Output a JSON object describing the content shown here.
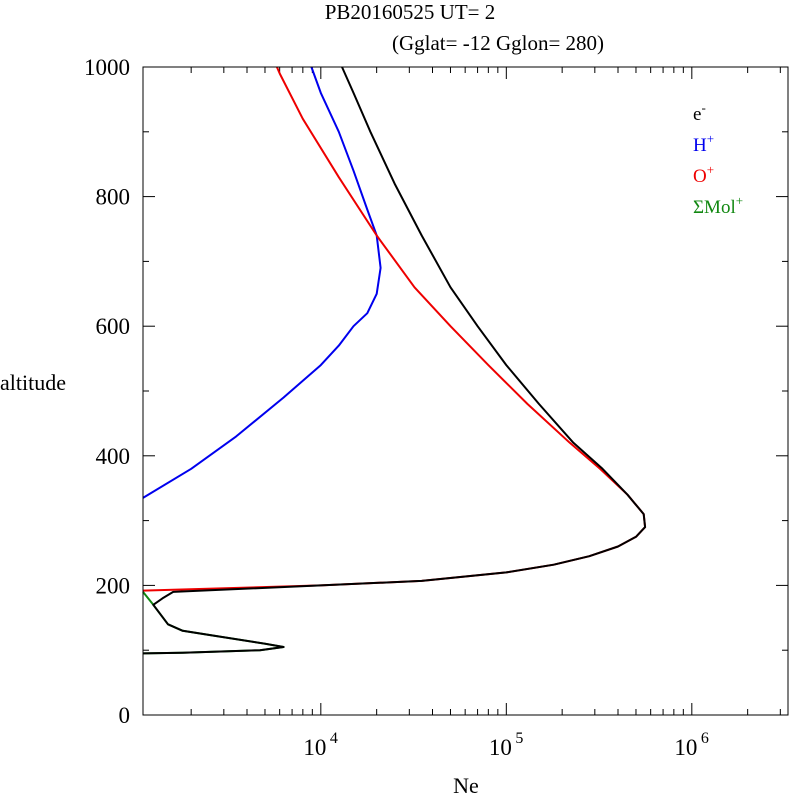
{
  "chart_data": {
    "type": "line",
    "title": "PB20160525   UT=  2",
    "subtitle": "(Gglat= -12   Gglon=  280)",
    "xlabel": "Ne",
    "ylabel": "altitude",
    "xscale": "log",
    "xlim": [
      1100,
      3300000
    ],
    "ylim": [
      0,
      1000
    ],
    "x_ticks": [
      {
        "base": "10",
        "exp": "4",
        "value": 10000
      },
      {
        "base": "10",
        "exp": "5",
        "value": 100000
      },
      {
        "base": "10",
        "exp": "6",
        "value": 1000000
      }
    ],
    "y_ticks": [
      {
        "label": "0",
        "value": 0
      },
      {
        "label": "200",
        "value": 200
      },
      {
        "label": "400",
        "value": 400
      },
      {
        "label": "600",
        "value": 600
      },
      {
        "label": "800",
        "value": 800
      },
      {
        "label": "1000",
        "value": 1000
      }
    ],
    "legend": {
      "placement": "top-right",
      "entries": [
        {
          "text": "e",
          "sup": "-",
          "color": "#000000"
        },
        {
          "text": "H",
          "sup": "+",
          "color": "#0000ee"
        },
        {
          "text": "O",
          "sup": "+",
          "color": "#ee0000"
        },
        {
          "text": "ΣMol",
          "sup": "+",
          "color": "#118811"
        }
      ]
    },
    "series": [
      {
        "key": "mol",
        "color": "#118811",
        "points": [
          [
            1100,
            190
          ],
          [
            1250,
            170
          ],
          [
            1500,
            140
          ],
          [
            1800,
            130
          ],
          [
            5000,
            110
          ],
          [
            6300,
            105
          ],
          [
            4700,
            100
          ],
          [
            1800,
            96
          ],
          [
            1100,
            95
          ]
        ]
      },
      {
        "key": "hplus",
        "color": "#0000ee",
        "points": [
          [
            1100,
            335
          ],
          [
            2000,
            380
          ],
          [
            3500,
            430
          ],
          [
            6300,
            490
          ],
          [
            10000,
            540
          ],
          [
            12500,
            570
          ],
          [
            15000,
            600
          ],
          [
            17800,
            620
          ],
          [
            20000,
            650
          ],
          [
            21000,
            690
          ],
          [
            20000,
            740
          ],
          [
            17800,
            780
          ],
          [
            15000,
            840
          ],
          [
            12500,
            900
          ],
          [
            10000,
            960
          ],
          [
            8900,
            1000
          ]
        ]
      },
      {
        "key": "oplus",
        "color": "#ee0000",
        "points": [
          [
            1100,
            192
          ],
          [
            10000,
            200
          ],
          [
            35000,
            207
          ],
          [
            100000,
            220
          ],
          [
            180000,
            232
          ],
          [
            280000,
            245
          ],
          [
            400000,
            260
          ],
          [
            500000,
            275
          ],
          [
            560000,
            290
          ],
          [
            550000,
            310
          ],
          [
            450000,
            340
          ],
          [
            320000,
            380
          ],
          [
            220000,
            420
          ],
          [
            130000,
            480
          ],
          [
            80000,
            540
          ],
          [
            50000,
            600
          ],
          [
            32000,
            660
          ],
          [
            20000,
            740
          ],
          [
            12500,
            830
          ],
          [
            8000,
            920
          ],
          [
            6000,
            990
          ],
          [
            5800,
            1000
          ]
        ]
      },
      {
        "key": "electron",
        "color": "#000000",
        "points": [
          [
            1100,
            95
          ],
          [
            1800,
            96
          ],
          [
            4700,
            100
          ],
          [
            6300,
            105
          ],
          [
            5000,
            110
          ],
          [
            1800,
            130
          ],
          [
            1500,
            140
          ],
          [
            1250,
            170
          ],
          [
            1400,
            180
          ],
          [
            1600,
            190
          ],
          [
            10000,
            200
          ],
          [
            35000,
            207
          ],
          [
            100000,
            220
          ],
          [
            180000,
            232
          ],
          [
            280000,
            245
          ],
          [
            400000,
            260
          ],
          [
            500000,
            275
          ],
          [
            560000,
            290
          ],
          [
            550000,
            310
          ],
          [
            450000,
            340
          ],
          [
            330000,
            380
          ],
          [
            230000,
            420
          ],
          [
            150000,
            480
          ],
          [
            100000,
            540
          ],
          [
            70000,
            600
          ],
          [
            50000,
            660
          ],
          [
            35000,
            740
          ],
          [
            25000,
            820
          ],
          [
            18500,
            900
          ],
          [
            15000,
            960
          ],
          [
            13000,
            1000
          ]
        ]
      }
    ]
  }
}
